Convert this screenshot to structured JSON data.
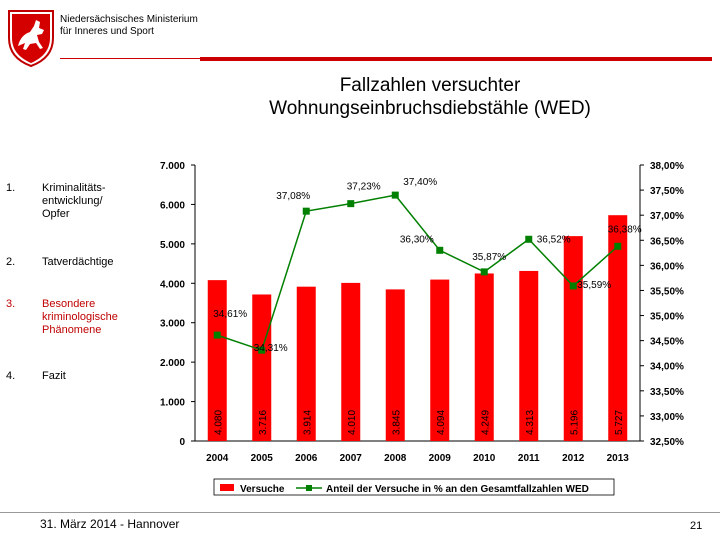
{
  "header": {
    "ministry_line1": "Niedersächsisches Ministerium",
    "ministry_line2": "für Inneres und Sport"
  },
  "title_line1": "Fallzahlen versuchter",
  "title_line2": "Wohnungseinbruchsdiebstähle (WED)",
  "agenda": [
    {
      "num": "1.",
      "label": "Kriminalitäts-\nentwicklung/\nOpfer"
    },
    {
      "num": "2.",
      "label": "Tatverdächtige"
    },
    {
      "num": "3.",
      "label": "Besondere\nkriminologische\nPhänomene"
    },
    {
      "num": "4.",
      "label": "Fazit"
    }
  ],
  "footer": {
    "date": "31. März 2014 - Hannover",
    "page": "21"
  },
  "colors": {
    "bar": "#ff0000",
    "line": "#008000",
    "accent": "#cc0000"
  },
  "chart_data": {
    "type": "bar",
    "categories": [
      "2004",
      "2005",
      "2006",
      "2007",
      "2008",
      "2009",
      "2010",
      "2011",
      "2012",
      "2013"
    ],
    "series": [
      {
        "name": "Versuche",
        "axis": "left",
        "values": [
          4080,
          3716,
          3914,
          4010,
          3845,
          4094,
          4249,
          4313,
          5196,
          5727
        ],
        "labels": [
          "4.080",
          "3.716",
          "3.914",
          "4.010",
          "3.845",
          "4.094",
          "4.249",
          "4.313",
          "5.196",
          "5.727"
        ]
      },
      {
        "name": "Anteil der Versuche in % an den Gesamtfallzahlen WED",
        "axis": "right",
        "type": "line",
        "values": [
          34.61,
          34.31,
          37.08,
          37.23,
          37.4,
          36.3,
          35.87,
          36.52,
          35.59,
          36.38
        ],
        "labels": [
          "34,61%",
          "34,31%",
          "37,08%",
          "37,23%",
          "37,40%",
          "36,30%",
          "35,87%",
          "36,52%",
          "35,59%",
          "36,38%"
        ]
      }
    ],
    "left_axis": {
      "min": 0,
      "max": 7000,
      "ticks": [
        "0",
        "1.000",
        "2.000",
        "3.000",
        "4.000",
        "5.000",
        "6.000",
        "7.000"
      ]
    },
    "right_axis": {
      "min": 32.5,
      "max": 38.0,
      "ticks": [
        "32,50%",
        "33,00%",
        "33,50%",
        "34,00%",
        "34,50%",
        "35,00%",
        "35,50%",
        "36,00%",
        "36,50%",
        "37,00%",
        "37,50%",
        "38,00%"
      ]
    },
    "legend": [
      "Versuche",
      "Anteil der Versuche in % an den Gesamtfallzahlen WED"
    ]
  }
}
